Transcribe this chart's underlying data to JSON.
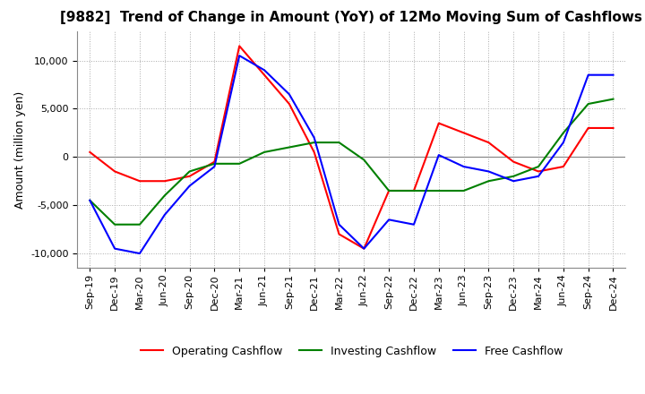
{
  "title": "[9882]  Trend of Change in Amount (YoY) of 12Mo Moving Sum of Cashflows",
  "ylabel": "Amount (million yen)",
  "ylim": [
    -11500,
    13000
  ],
  "yticks": [
    -10000,
    -5000,
    0,
    5000,
    10000
  ],
  "x_labels": [
    "Sep-19",
    "Dec-19",
    "Mar-20",
    "Jun-20",
    "Sep-20",
    "Dec-20",
    "Mar-21",
    "Jun-21",
    "Sep-21",
    "Dec-21",
    "Mar-22",
    "Jun-22",
    "Sep-22",
    "Dec-22",
    "Mar-23",
    "Jun-23",
    "Sep-23",
    "Dec-23",
    "Mar-24",
    "Jun-24",
    "Sep-24",
    "Dec-24"
  ],
  "operating": [
    500,
    -1500,
    -2500,
    -2500,
    -2000,
    -500,
    11500,
    8500,
    5500,
    500,
    -8000,
    -9500,
    -3500,
    -3500,
    3500,
    2500,
    1500,
    -500,
    -1500,
    -1000,
    3000,
    3000
  ],
  "investing": [
    -4500,
    -7000,
    -7000,
    -4000,
    -1500,
    -700,
    -700,
    500,
    1000,
    1500,
    1500,
    -300,
    -3500,
    -3500,
    -3500,
    -3500,
    -2500,
    -2000,
    -1000,
    2500,
    5500,
    6000
  ],
  "free": [
    -4500,
    -9500,
    -10000,
    -6000,
    -3000,
    -1000,
    10500,
    9000,
    6500,
    2000,
    -7000,
    -9500,
    -6500,
    -7000,
    200,
    -1000,
    -1500,
    -2500,
    -2000,
    1500,
    8500,
    8500
  ],
  "operating_color": "#ff0000",
  "investing_color": "#008000",
  "free_color": "#0000ff",
  "title_fontsize": 11,
  "axis_fontsize": 9,
  "tick_fontsize": 8,
  "legend_fontsize": 9,
  "background_color": "#ffffff",
  "grid_color": "#aaaaaa"
}
